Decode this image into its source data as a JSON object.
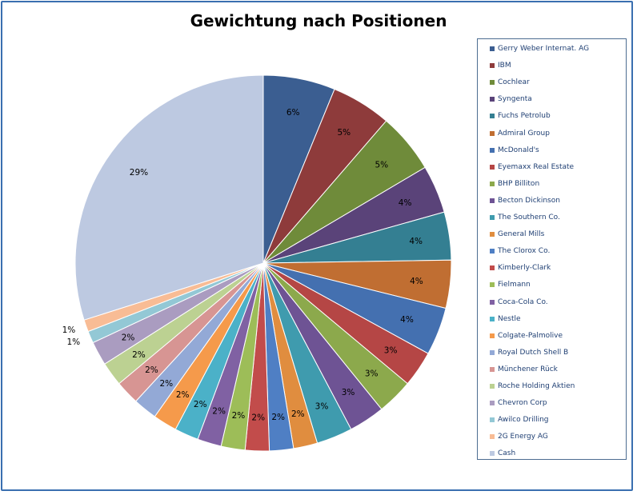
{
  "chart_data": {
    "type": "pie",
    "title": "Gewichtung nach Positionen",
    "legend_position": "right",
    "slices": [
      {
        "label": "Gerry Weber Internat. AG",
        "value": 6,
        "display": "6%",
        "color": "#3b5e91"
      },
      {
        "label": "IBM",
        "value": 5,
        "display": "5%",
        "color": "#8e3b3b"
      },
      {
        "label": "Cochlear",
        "value": 5,
        "display": "5%",
        "color": "#6f8b3a"
      },
      {
        "label": "Syngenta",
        "value": 4,
        "display": "4%",
        "color": "#5a4379"
      },
      {
        "label": "Fuchs Petrolub",
        "value": 4,
        "display": "4%",
        "color": "#347f92"
      },
      {
        "label": "Admiral Group",
        "value": 4,
        "display": "4%",
        "color": "#c06e32"
      },
      {
        "label": "McDonald's",
        "value": 4,
        "display": "4%",
        "color": "#4470b0"
      },
      {
        "label": "Eyemaxx Real Estate",
        "value": 3,
        "display": "3%",
        "color": "#b54645"
      },
      {
        "label": "BHP Billiton",
        "value": 3,
        "display": "3%",
        "color": "#8ca94c"
      },
      {
        "label": "Becton Dickinson",
        "value": 3,
        "display": "3%",
        "color": "#6e5394"
      },
      {
        "label": "The Southern Co.",
        "value": 3,
        "display": "3%",
        "color": "#3f9bae"
      },
      {
        "label": "General Mills",
        "value": 2,
        "display": "2%",
        "color": "#e08d3f"
      },
      {
        "label": "The Clorox Co.",
        "value": 2,
        "display": "2%",
        "color": "#4f7fc4"
      },
      {
        "label": "Kimberly-Clark",
        "value": 2,
        "display": "2%",
        "color": "#c24c4b"
      },
      {
        "label": "Fielmann",
        "value": 2,
        "display": "2%",
        "color": "#9dbd58"
      },
      {
        "label": "Coca-Cola Co.",
        "value": 2,
        "display": "2%",
        "color": "#8061a3"
      },
      {
        "label": "Nestle",
        "value": 2,
        "display": "2%",
        "color": "#4bb1c8"
      },
      {
        "label": "Colgate-Palmolive",
        "value": 2,
        "display": "2%",
        "color": "#f59a4b"
      },
      {
        "label": "Royal Dutch Shell B",
        "value": 2,
        "display": "2%",
        "color": "#93a9d6"
      },
      {
        "label": "Münchener Rück",
        "value": 2,
        "display": "2%",
        "color": "#d79593"
      },
      {
        "label": "Roche Holding Aktien",
        "value": 2,
        "display": "2%",
        "color": "#bcd192"
      },
      {
        "label": "Chevron Corp",
        "value": 2,
        "display": "2%",
        "color": "#aa9cc0"
      },
      {
        "label": "Awilco Drilling",
        "value": 1,
        "display": "1%",
        "color": "#93c8d5"
      },
      {
        "label": "2G Energy AG",
        "value": 1,
        "display": "1%",
        "color": "#f8bc95"
      },
      {
        "label": "Cash",
        "value": 29,
        "display": "29%",
        "color": "#bdc9e1"
      }
    ]
  }
}
